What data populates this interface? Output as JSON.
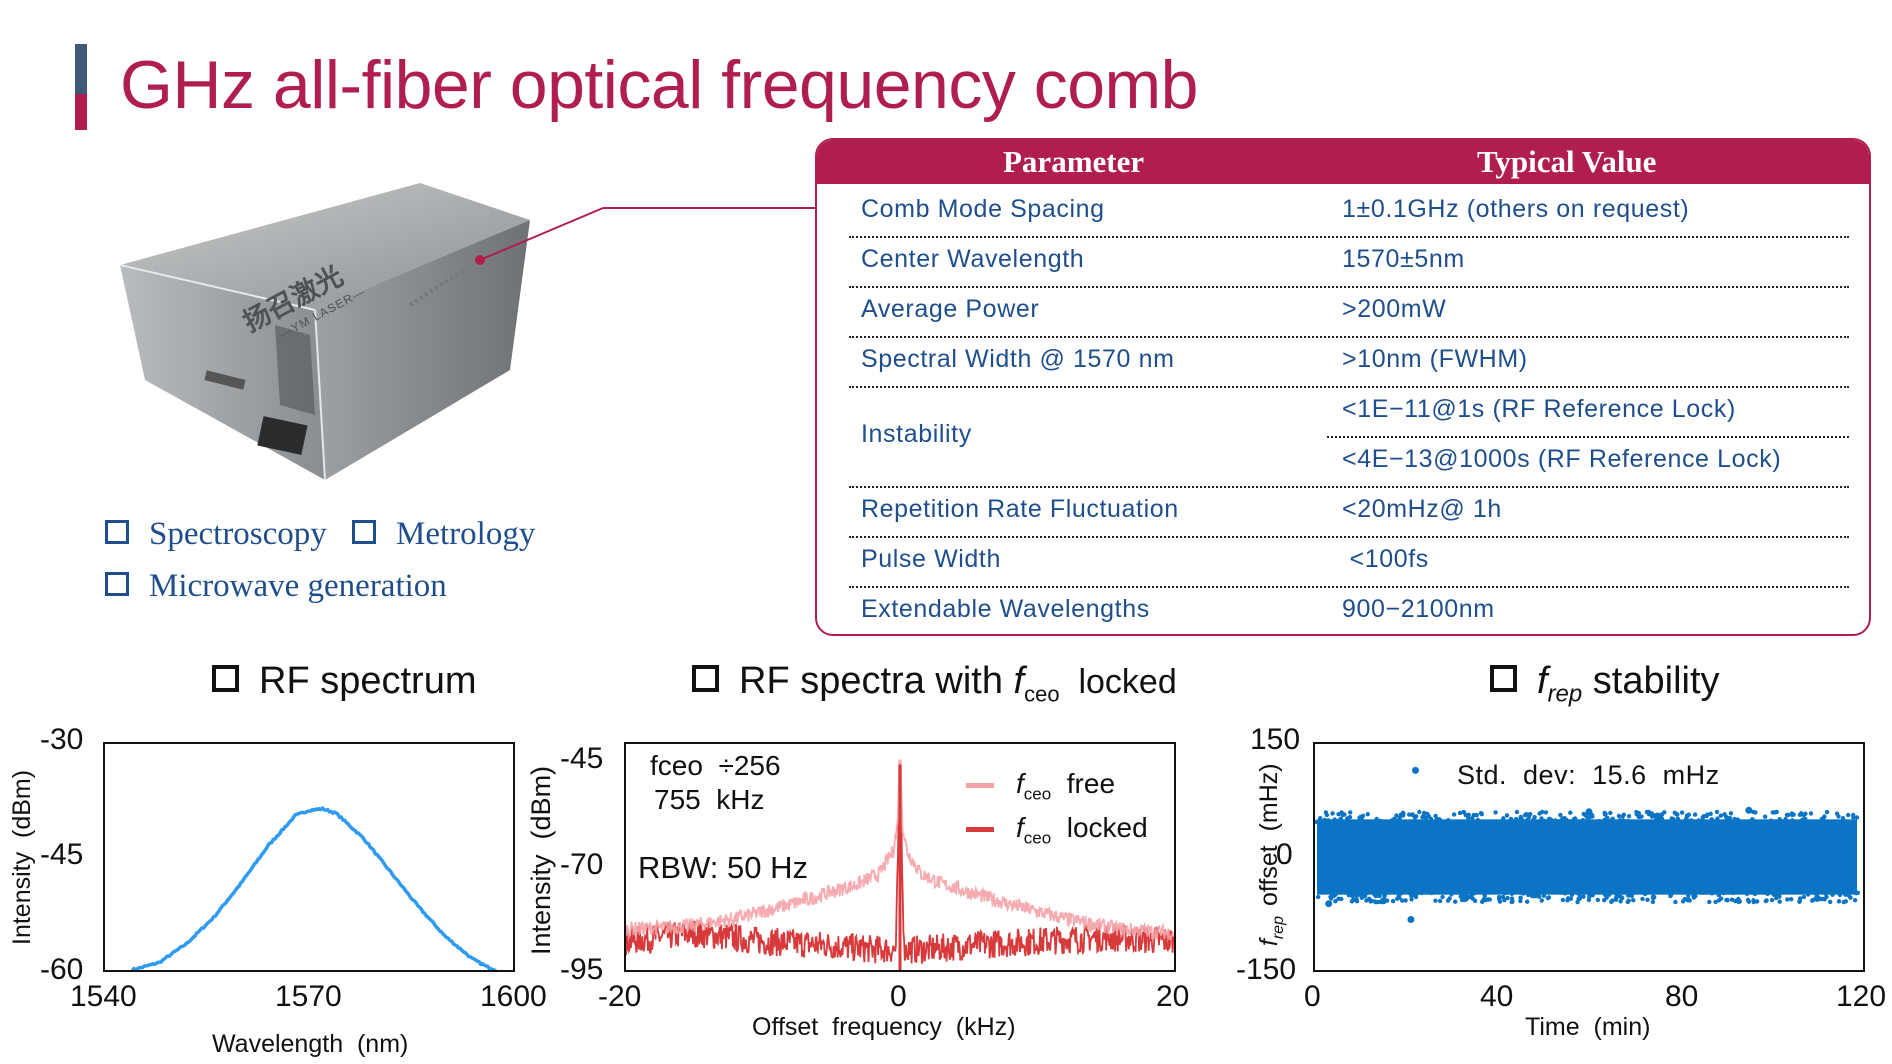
{
  "title": "GHz all-fiber optical frequency comb",
  "colors": {
    "accent": "#b01e4f",
    "accent_dark": "#3f5a78",
    "text_blue": "#1f4e8c",
    "series_blue": "#2f9bef",
    "series_red": "#d8393b",
    "series_pink": "#f4a2a6",
    "scatter_blue": "#0b74c4"
  },
  "device": {
    "brand_cn": "扬召激光",
    "brand_en": "—YM LASER—"
  },
  "applications": [
    "Spectroscopy",
    "Metrology",
    "Microwave generation"
  ],
  "spec_table": {
    "headers": [
      "Parameter",
      "Typical Value"
    ],
    "rows": [
      {
        "param": "Comb  Mode  Spacing",
        "values": [
          "1±0.1GHz  (others  on  request)"
        ]
      },
      {
        "param": "Center  Wavelength",
        "values": [
          "1570±5nm"
        ]
      },
      {
        "param": "Average  Power",
        "values": [
          ">200mW"
        ]
      },
      {
        "param": "Spectral  Width  @  1570  nm",
        "values": [
          ">10nm  (FWHM)"
        ]
      },
      {
        "param": "Instability",
        "values": [
          "<1E−11@1s  (RF  Reference  Lock)",
          "<4E−13@1000s  (RF  Reference  Lock)"
        ]
      },
      {
        "param": "Repetition  Rate  Fluctuation",
        "values": [
          "<20mHz@  1h"
        ]
      },
      {
        "param": "Pulse  Width",
        "values": [
          " <100fs"
        ]
      },
      {
        "param": "Extendable  Wavelengths",
        "values": [
          "900−2100nm"
        ]
      }
    ]
  },
  "sections": {
    "rf_spectrum": "RF spectrum",
    "rf_ceo_prefix": "RF spectra with ",
    "rf_ceo_f": "f",
    "rf_ceo_sub": "ceo",
    "rf_ceo_suffix": "  locked",
    "frep_f": "f",
    "frep_sub": "rep",
    "frep_suffix": " stability"
  },
  "chart_data": [
    {
      "type": "line",
      "xlabel": "Wavelength  (nm)",
      "ylabel": "Intensity  (dBm)",
      "xlim": [
        1540,
        1600
      ],
      "ylim": [
        -60,
        -30
      ],
      "xticks": [
        "1540",
        "1570",
        "1600"
      ],
      "yticks": [
        "-30",
        "-45",
        "-60"
      ],
      "series": [
        {
          "x": [
            1544,
            1548,
            1552,
            1556,
            1560,
            1564,
            1568,
            1570,
            1572,
            1574,
            1578,
            1582,
            1586,
            1590,
            1594,
            1596,
            1597.5
          ],
          "y": [
            -60,
            -59,
            -56.5,
            -53,
            -48.5,
            -43.5,
            -39.5,
            -38.8,
            -38.6,
            -39.2,
            -42.5,
            -47,
            -51.5,
            -55.5,
            -58.5,
            -59.5,
            -60
          ]
        }
      ]
    },
    {
      "type": "line",
      "xlabel": "Offset  frequency  (kHz)",
      "ylabel": "Intensity  (dBm)",
      "xlim": [
        -20,
        20
      ],
      "ylim": [
        -95,
        -40
      ],
      "xticks": [
        "-20",
        "0",
        "20"
      ],
      "yticks": [
        "-45",
        "-70",
        "-95"
      ],
      "annotations": {
        "line1": "fceo  ÷256",
        "line2": "755  kHz",
        "rbw": "RBW: 50 Hz"
      },
      "legend_position": "top-right",
      "series": [
        {
          "name_f": "f",
          "name_sub": "ceo",
          "name_suffix": "  free",
          "x": [
            -20,
            -16,
            -12,
            -8,
            -5,
            -3,
            -1.5,
            -0.5,
            -0.2,
            0,
            0.2,
            0.5,
            1.5,
            3,
            5,
            8,
            12,
            16,
            20
          ],
          "y": [
            -85,
            -84.5,
            -82.5,
            -79,
            -76,
            -74,
            -71.5,
            -66,
            -60,
            -44,
            -60,
            -66,
            -71.5,
            -74,
            -76,
            -79,
            -82.5,
            -85,
            -86
          ]
        },
        {
          "name_f": "f",
          "name_sub": "ceo",
          "name_suffix": "  locked",
          "x": [
            -20,
            -15,
            -10,
            -5,
            -2,
            -0.3,
            0,
            0.3,
            2,
            5,
            10,
            15,
            20
          ],
          "y": [
            -88,
            -86,
            -88,
            -89,
            -90,
            -90,
            -45,
            -90,
            -90,
            -89,
            -88,
            -87,
            -88
          ]
        }
      ]
    },
    {
      "type": "scatter",
      "xlabel": "Time  (min)",
      "ylabel": "offset  (mHz)",
      "ylabel_f": "f",
      "ylabel_sub": "rep",
      "xlim": [
        0,
        120
      ],
      "ylim": [
        -150,
        150
      ],
      "xticks": [
        "0",
        "40",
        "80",
        "120"
      ],
      "yticks": [
        "150",
        "0",
        "-150"
      ],
      "annotation": "Std.  dev:  15.6  mHz",
      "band": [
        -50,
        50
      ],
      "outliers": {
        "x": [
          22,
          3,
          15,
          60,
          95,
          110,
          21
        ],
        "y": [
          115,
          -62,
          -58,
          60,
          62,
          -55,
          -83
        ]
      }
    }
  ]
}
